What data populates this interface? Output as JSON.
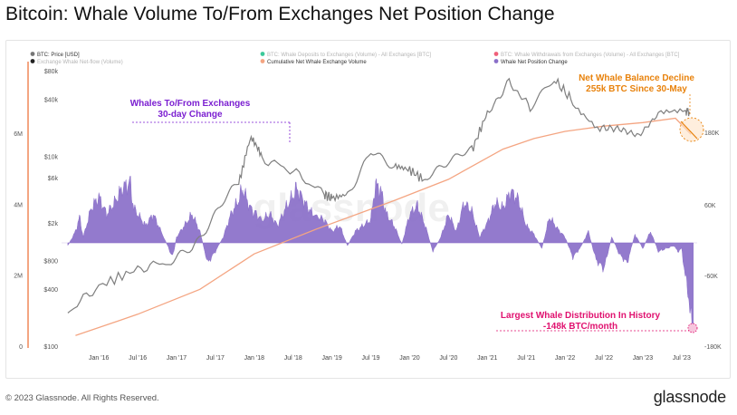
{
  "title": "Bitcoin: Whale Volume To/From Exchanges Net Position Change",
  "footer": {
    "copyright": "© 2023 Glassnode. All Rights Reserved.",
    "brand": "glassnode",
    "watermark": "glassnode"
  },
  "colors": {
    "price": "#7f7f7f",
    "cumulative": "#f4a582",
    "net_change": "#8a6fc9",
    "accent_orange": "#e8820c",
    "accent_purple": "#7b1fd1",
    "accent_pink": "#e0116f"
  },
  "chart_data": {
    "type": "area",
    "legend": [
      {
        "label": "BTC: Price [USD]",
        "color": "#777777"
      },
      {
        "label": "Exchange Whale Net-flow (Volume)",
        "color": "#222222"
      },
      {
        "label": "BTC: Whale Deposits to Exchanges (Volume) - All Exchanges [BTC]",
        "color": "#3cc99a"
      },
      {
        "label": "Cumulative Net Whale Exchange Volume",
        "color": "#f4a582"
      },
      {
        "label": "BTC: Whale Withdrawals from Exchanges (Volume) - All Exchanges [BTC]",
        "color": "#f0607a"
      },
      {
        "label": "Whale Net Position Change",
        "color": "#8a6fc9"
      }
    ],
    "x_ticks": [
      "Jan '16",
      "Jul '16",
      "Jan '17",
      "Jul '17",
      "Jan '18",
      "Jul '18",
      "Jan '19",
      "Jul '19",
      "Jan '20",
      "Jul '20",
      "Jan '21",
      "Jul '21",
      "Jan '22",
      "Jul '22",
      "Jan '23",
      "Jul '23"
    ],
    "x_range": [
      "2015-07",
      "2023-08"
    ],
    "y_left_price": {
      "scale": "log",
      "ticks": [
        "$100",
        "$400",
        "$800",
        "$2k",
        "$6k",
        "$10k",
        "$40k",
        "$80k"
      ],
      "values": [
        100,
        400,
        800,
        2000,
        6000,
        10000,
        40000,
        80000
      ]
    },
    "y_left_cumulative": {
      "ticks": [
        "0",
        "2M",
        "4M",
        "6M"
      ],
      "values": [
        0,
        2000000,
        4000000,
        6000000
      ]
    },
    "y_right": {
      "ticks": [
        "180K",
        "60K",
        "-60K",
        "-180K"
      ],
      "values": [
        180000,
        60000,
        -60000,
        -180000
      ],
      "range": [
        -180000,
        180000
      ]
    },
    "series": [
      {
        "name": "BTC: Price [USD]",
        "x": [
          2015.6,
          2016.0,
          2016.5,
          2016.9,
          2017.2,
          2017.5,
          2017.8,
          2017.96,
          2018.1,
          2018.5,
          2018.9,
          2019.0,
          2019.2,
          2019.5,
          2019.8,
          2020.0,
          2020.2,
          2020.5,
          2020.8,
          2021.0,
          2021.28,
          2021.55,
          2021.86,
          2022.1,
          2022.45,
          2022.7,
          2022.95,
          2023.2,
          2023.55,
          2023.6
        ],
        "y": [
          230,
          430,
          650,
          780,
          1050,
          2500,
          5500,
          16000,
          9500,
          7000,
          4000,
          3600,
          4000,
          11000,
          8000,
          7200,
          5500,
          9300,
          11500,
          29000,
          60000,
          33000,
          65000,
          38000,
          20000,
          19500,
          16500,
          28000,
          30500,
          29500
        ]
      },
      {
        "name": "Cumulative Net Whale Exchange Volume",
        "x": [
          2015.7,
          2016.5,
          2017.3,
          2018.0,
          2018.8,
          2019.8,
          2020.5,
          2021.2,
          2021.6,
          2022.0,
          2022.5,
          2023.0,
          2023.42,
          2023.62
        ],
        "y": [
          300000,
          900000,
          1600000,
          2600000,
          3300000,
          4100000,
          4700000,
          5550000,
          5850000,
          6050000,
          6200000,
          6300000,
          6420000,
          5970000
        ]
      },
      {
        "name": "Whale Net Position Change",
        "x": [
          2015.6,
          2015.7,
          2015.75,
          2015.8,
          2015.9,
          2016.0,
          2016.1,
          2016.2,
          2016.3,
          2016.4,
          2016.45,
          2016.55,
          2016.6,
          2016.7,
          2016.8,
          2016.95,
          2017.0,
          2017.1,
          2017.2,
          2017.3,
          2017.4,
          2017.5,
          2017.6,
          2017.7,
          2017.8,
          2017.85,
          2017.95,
          2018.1,
          2018.2,
          2018.3,
          2018.4,
          2018.5,
          2018.55,
          2018.65,
          2018.75,
          2018.9,
          2019.0,
          2019.1,
          2019.2,
          2019.3,
          2019.4,
          2019.5,
          2019.55,
          2019.6,
          2019.65,
          2019.7,
          2019.8,
          2019.9,
          2020.0,
          2020.1,
          2020.2,
          2020.3,
          2020.4,
          2020.5,
          2020.6,
          2020.7,
          2020.8,
          2020.9,
          2021.0,
          2021.1,
          2021.2,
          2021.3,
          2021.4,
          2021.5,
          2021.6,
          2021.7,
          2021.8,
          2021.9,
          2022.0,
          2022.1,
          2022.2,
          2022.3,
          2022.4,
          2022.5,
          2022.6,
          2022.7,
          2022.8,
          2022.9,
          2023.0,
          2023.1,
          2023.2,
          2023.3,
          2023.4,
          2023.45,
          2023.5,
          2023.55,
          2023.6,
          2023.62,
          2023.65
        ],
        "y": [
          -5000,
          20000,
          45000,
          10000,
          60000,
          80000,
          50000,
          70000,
          95000,
          105000,
          60000,
          40000,
          30000,
          50000,
          20000,
          -25000,
          10000,
          30000,
          50000,
          20000,
          -35000,
          -15000,
          10000,
          50000,
          75000,
          95000,
          60000,
          40000,
          50000,
          30000,
          60000,
          82000,
          95000,
          70000,
          50000,
          40000,
          20000,
          30000,
          -5000,
          20000,
          30000,
          40000,
          95000,
          100000,
          80000,
          50000,
          30000,
          -2000,
          50000,
          65000,
          30000,
          -15000,
          10000,
          50000,
          20000,
          70000,
          55000,
          10000,
          35000,
          70000,
          60000,
          90000,
          75000,
          30000,
          15000,
          -10000,
          45000,
          25000,
          10000,
          -25000,
          -8000,
          20000,
          -30000,
          -45000,
          10000,
          -20000,
          -35000,
          15000,
          -10000,
          20000,
          -15000,
          -10000,
          -5000,
          -15000,
          -10000,
          -60000,
          -100000,
          -140000,
          -148000
        ]
      }
    ],
    "annotations": {
      "whales_label": [
        "Whales To/From Exchanges",
        "30-day Change"
      ],
      "decline_label": [
        "Net Whale Balance Decline",
        "255k BTC Since 30-May"
      ],
      "distribution_label": [
        "Largest Whale Distribution In History",
        "-148k BTC/month"
      ]
    }
  }
}
